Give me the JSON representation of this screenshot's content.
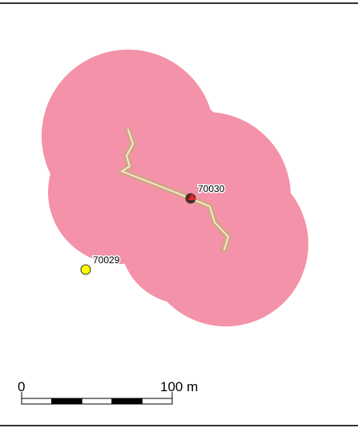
{
  "map": {
    "colors": {
      "background": "#ffffff",
      "frame": "#333333",
      "buffer_fill": "#f392a8",
      "trail_outer": "#cfa680",
      "trail_inner": "#f6e7d2",
      "site_red": "#e3262c",
      "site_yellow": "#ffff00",
      "text": "#000000",
      "label_halo": "#ffffff"
    },
    "features": [
      {
        "id": "70030",
        "label": "70030",
        "symbol": "red-site-marker"
      },
      {
        "id": "70029",
        "label": "70029",
        "symbol": "yellow-circle-marker"
      }
    ],
    "scale_bar": {
      "start_label": "0",
      "end_label": "100 m",
      "segments": 5
    }
  }
}
